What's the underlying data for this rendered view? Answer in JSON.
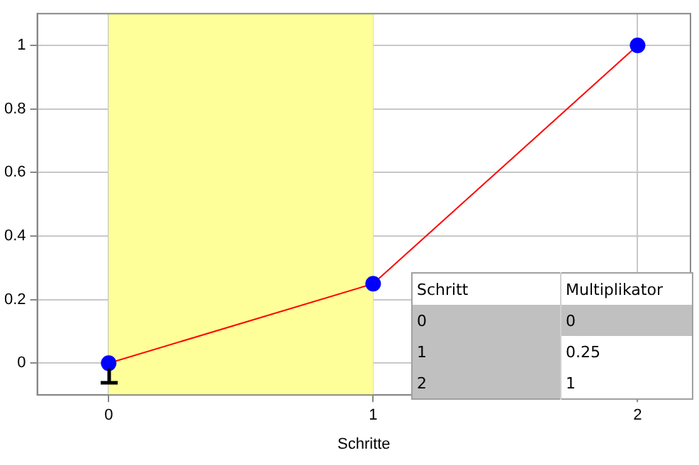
{
  "chart_data": {
    "type": "line",
    "xlabel": "Schritte",
    "x": [
      0,
      1,
      2
    ],
    "series": [
      {
        "color": "#ff0000",
        "colors": [
          "#0000ff",
          "#0000ff",
          "#0000ff"
        ],
        "values": [
          0,
          0.25,
          1
        ]
      }
    ],
    "xlim": [
      -0.27,
      2.2
    ],
    "xticks": [
      0,
      1,
      2
    ],
    "ylim": [
      -0.1,
      1.1
    ],
    "yticks": [
      0,
      0.2,
      0.4,
      0.6,
      0.8,
      1
    ],
    "grid": true,
    "legend": false,
    "marker": "circle",
    "line_style": "solid",
    "bands": [
      {
        "axis": "x",
        "from": 0,
        "to": 1,
        "color": "#ffff99"
      }
    ],
    "annotations": [
      "Schritt",
      "Multiplikator",
      "0",
      "0",
      "1",
      "0.25",
      "2",
      "1"
    ]
  }
}
